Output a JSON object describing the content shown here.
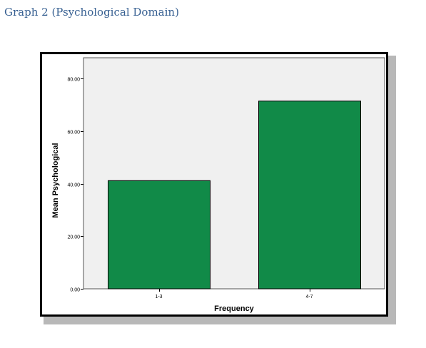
{
  "caption": "Graph 2 (Psychological Domain)",
  "colors": {
    "bar_fill": "#118a48",
    "plot_background": "#f0f0f0",
    "caption": "#365f91"
  },
  "chart_data": {
    "type": "bar",
    "categories": [
      "1-3",
      "4-7"
    ],
    "values": [
      41.2,
      71.5
    ],
    "title": "",
    "xlabel": "Frequency",
    "ylabel": "Mean Psychological",
    "ylim": [
      0,
      88
    ],
    "yticks": [
      0,
      20,
      40,
      60,
      80
    ],
    "ytick_labels": [
      "0.00",
      "20.00",
      "40.00",
      "60.00",
      "80.00"
    ],
    "grid": false,
    "legend": "none"
  }
}
